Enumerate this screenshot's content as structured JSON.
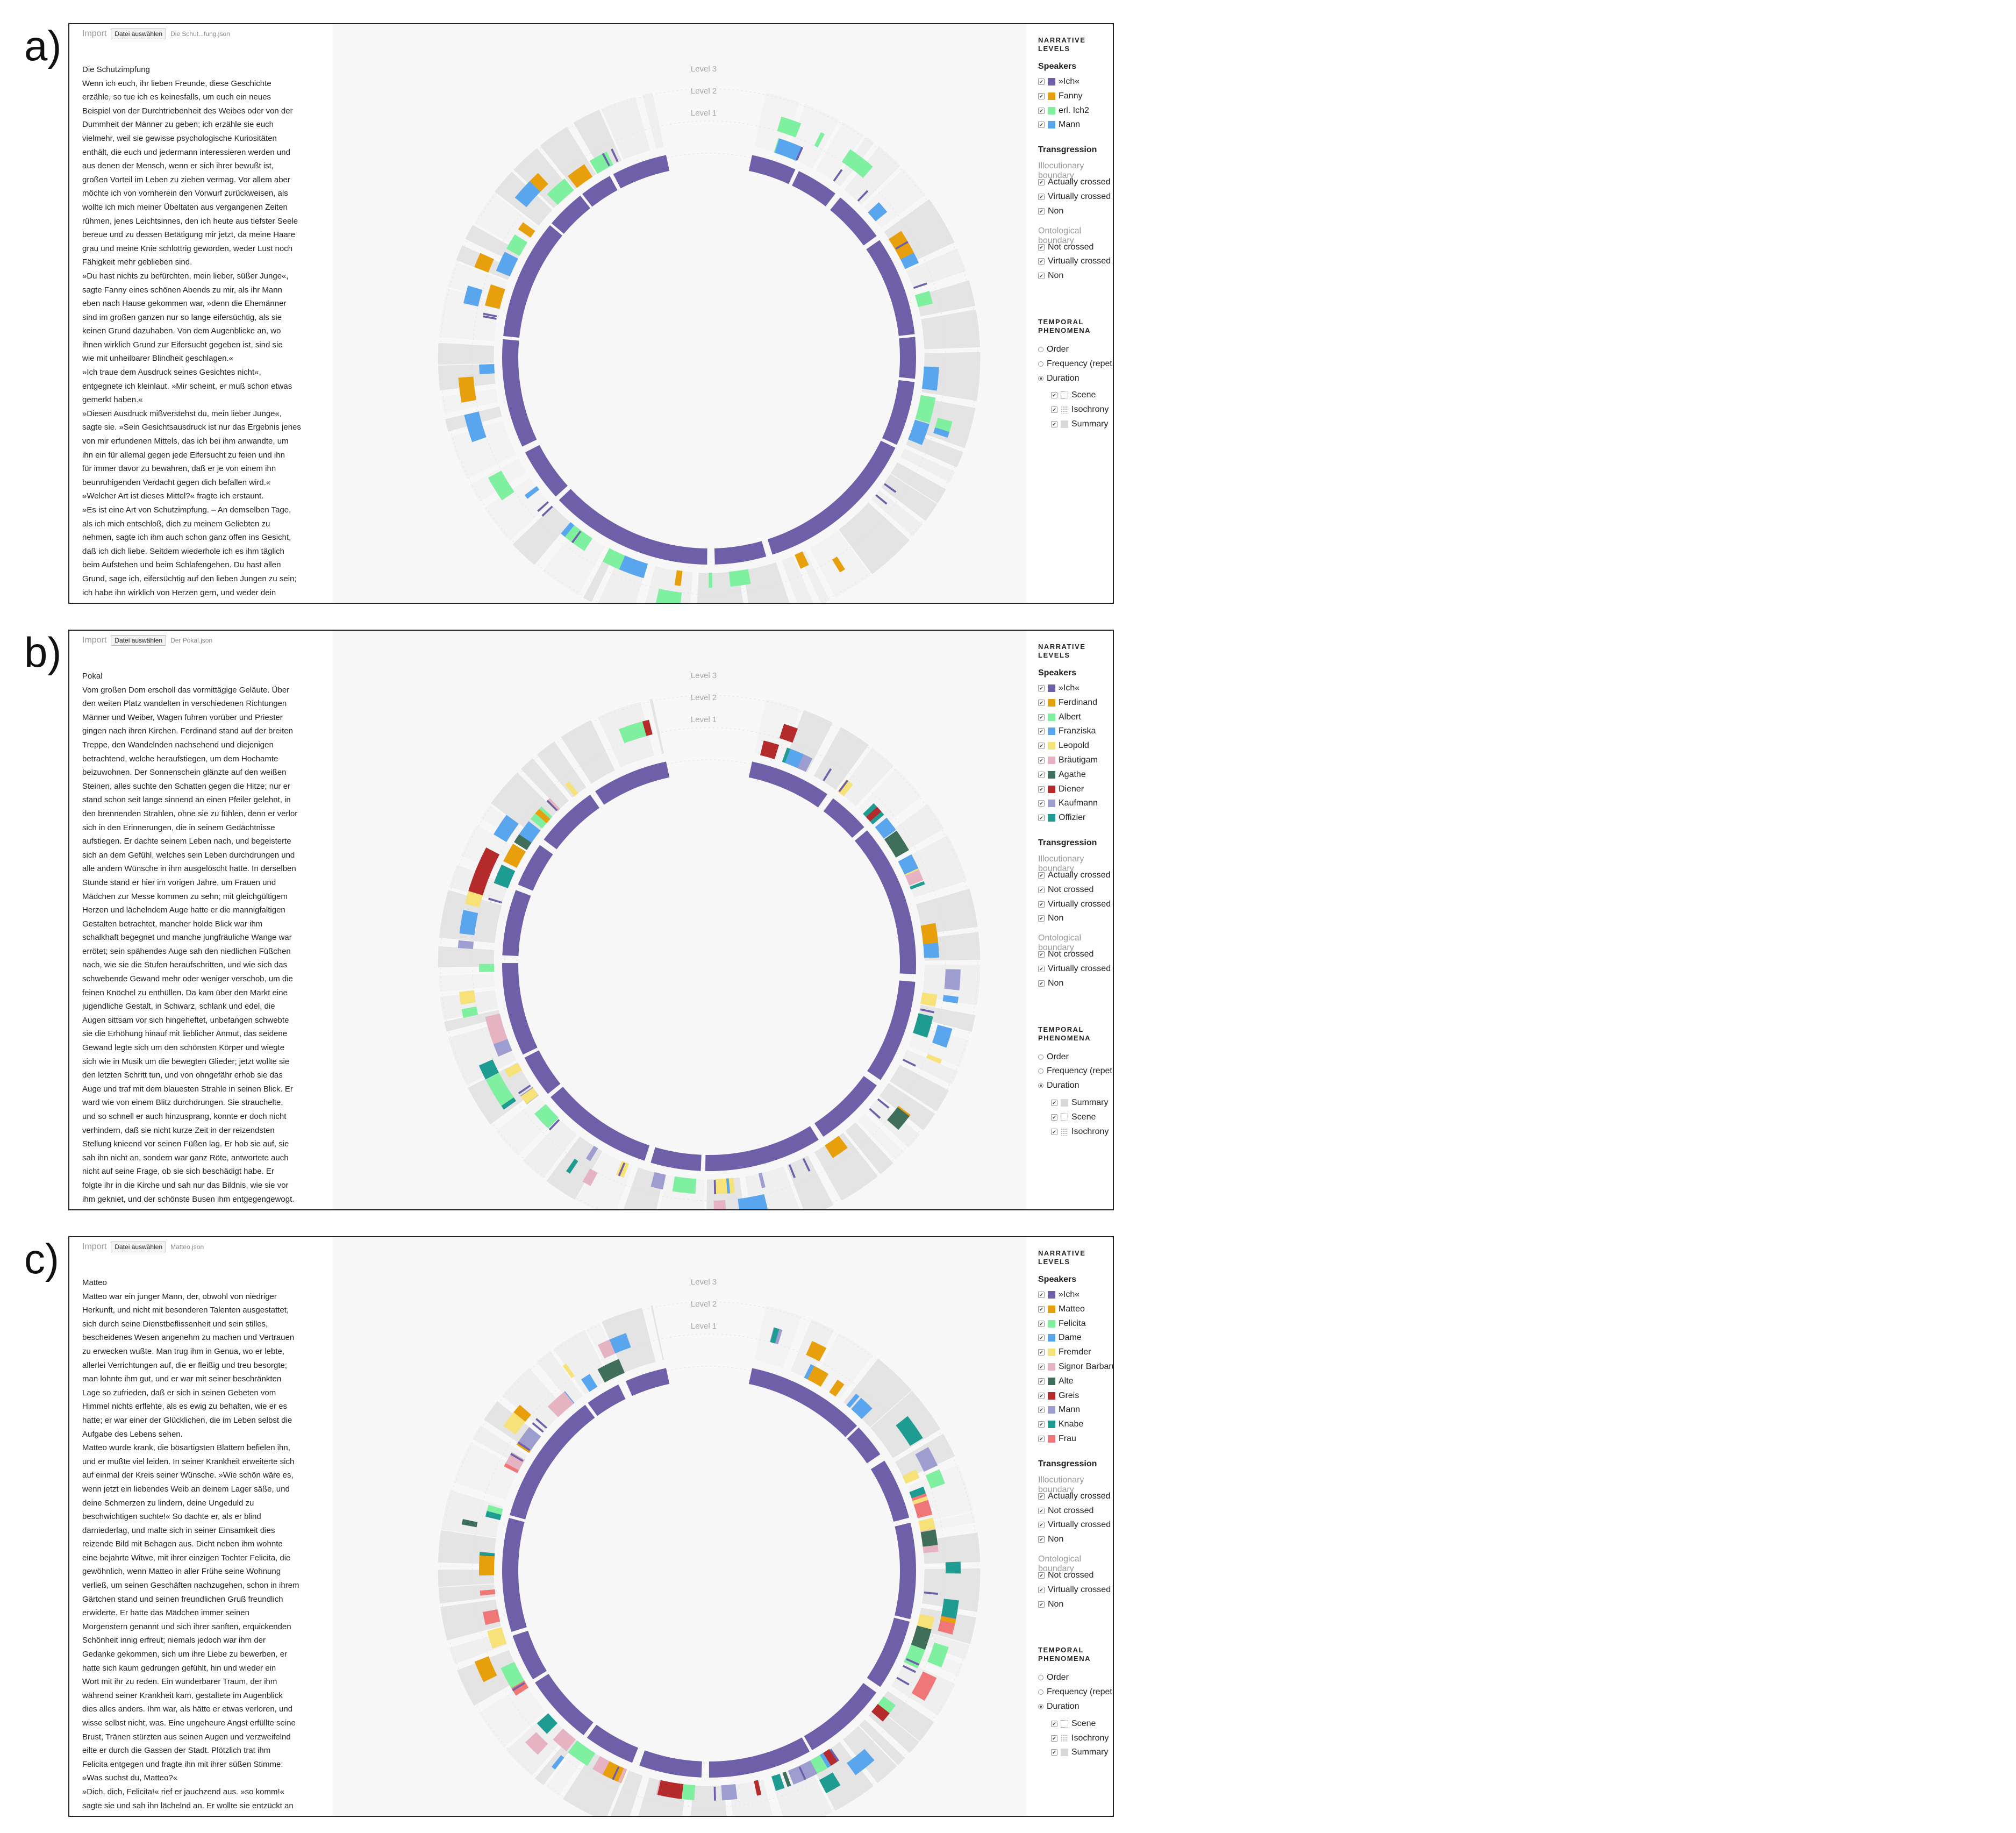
{
  "panels": [
    {
      "letter": "a)",
      "import_label": "Import",
      "file_button": "Datei auswählen",
      "file_name": "Die Schut...fung.json",
      "text_title": "Die Schutzimpfung",
      "text_lines": [
        "Wenn ich euch, ihr lieben Freunde, diese Geschichte",
        "erzähle, so tue ich es keinesfalls, um euch ein neues",
        "Beispiel von der Durchtriebenheit des Weibes oder von der",
        "Dummheit der Männer zu geben; ich erzähle sie euch",
        "vielmehr, weil sie gewisse psychologische Kuriositäten",
        "enthält, die euch und jedermann interessieren werden und",
        "aus denen der Mensch, wenn er sich ihrer bewußt ist,",
        "großen Vorteil im Leben zu ziehen vermag. Vor allem aber",
        "möchte ich von vornherein den Vorwurf zurückweisen, als",
        "wollte ich mich meiner Übeltaten aus vergangenen Zeiten",
        "rühmen, jenes Leichtsinnes, den ich heute aus tiefster Seele",
        "bereue und zu dessen Betätigung mir jetzt, da meine Haare",
        "grau und meine Knie schlottrig geworden, weder Lust noch",
        "Fähigkeit mehr geblieben sind.",
        "»Du hast nichts zu befürchten, mein lieber, süßer Junge«,",
        "sagte Fanny eines schönen Abends zu mir, als ihr Mann",
        "eben nach Hause gekommen war, »denn die Ehemänner",
        "sind im großen ganzen nur so lange eifersüchtig, als sie",
        "keinen Grund dazuhaben. Von dem Augenblicke an, wo",
        "ihnen wirklich Grund zur Eifersucht gegeben ist, sind sie",
        "wie mit unheilbarer Blindheit geschlagen.«",
        "»Ich traue dem Ausdruck seines Gesichtes nicht«,",
        "entgegnete ich kleinlaut. »Mir scheint, er muß schon etwas",
        "gemerkt haben.«",
        "»Diesen Ausdruck mißverstehst du, mein lieber Junge«,",
        "sagte sie. »Sein Gesichtsausdruck ist nur das Ergebnis jenes",
        "von mir erfundenen Mittels, das ich bei ihm anwandte, um",
        "ihn ein für allemal gegen jede Eifersucht zu feien und ihn",
        "für immer davor zu bewahren, daß er je von einem ihn",
        "beunruhigenden Verdacht gegen dich befallen wird.«",
        "»Welcher Art ist dieses Mittel?« fragte ich erstaunt.",
        "»Es ist eine Art von Schutzimpfung. – An demselben Tage,",
        "als ich mich entschloß, dich zu meinem Geliebten zu",
        "nehmen, sagte ich ihm auch schon ganz offen ins Gesicht,",
        "daß ich dich liebe. Seitdem wiederhole ich es ihm täglich",
        "beim Aufstehen und beim Schlafengehen. Du hast allen",
        "Grund, sage ich, eifersüchtig auf den lieben Jungen zu sein;",
        "ich habe ihn wirklich von Herzen gern, und weder dein"
      ],
      "levels": [
        "Level 3",
        "Level 2",
        "Level 1"
      ],
      "narrative_heading": [
        "NARRATIVE",
        "LEVELS"
      ],
      "speakers_heading": "Speakers",
      "speakers": [
        {
          "name": "»Ich«",
          "color": "#6e5fa8"
        },
        {
          "name": "Fanny",
          "color": "#e89f0c"
        },
        {
          "name": "erl. Ich2",
          "color": "#7ef0a0"
        },
        {
          "name": "Mann",
          "color": "#5aa6ee"
        }
      ],
      "transgression_heading": "Transgression",
      "illocutionary_heading": "Illocutionary boundary",
      "illocutionary_items": [
        "Actually crossed",
        "Virtually crossed",
        "Non"
      ],
      "ontological_heading": "Ontological boundary",
      "ontological_items": [
        "Not crossed",
        "Virtually crossed",
        "Non"
      ],
      "temporal_heading": [
        "TEMPORAL",
        "PHENOMENA"
      ],
      "temporal_radios": [
        {
          "label": "Order",
          "selected": false
        },
        {
          "label": "Frequency (repetitive)",
          "selected": false
        },
        {
          "label": "Duration",
          "selected": true
        }
      ],
      "duration_items": [
        {
          "label": "Scene",
          "swatch": "scene"
        },
        {
          "label": "Isochrony",
          "swatch": "isochrony"
        },
        {
          "label": "Summary",
          "swatch": "summary"
        }
      ]
    },
    {
      "letter": "b)",
      "import_label": "Import",
      "file_button": "Datei auswählen",
      "file_name": "Der Pokal.json",
      "text_title": "Pokal",
      "text_lines": [
        "Vom großen Dom erscholl das vormittägige Geläute. Über",
        "den weiten Platz wandelten in verschiedenen Richtungen",
        "Männer und Weiber, Wagen fuhren vorüber und Priester",
        "gingen nach ihren Kirchen. Ferdinand stand auf der breiten",
        "Treppe, den Wandelnden nachsehend und diejenigen",
        "betrachtend, welche heraufstiegen, um dem Hochamte",
        "beizuwohnen. Der Sonnenschein glänzte auf den weißen",
        "Steinen, alles suchte den Schatten gegen die Hitze; nur er",
        "stand schon seit lange sinnend an einen Pfeiler gelehnt, in",
        "den brennenden Strahlen, ohne sie zu fühlen, denn er verlor",
        "sich in den Erinnerungen, die in seinem Gedächtnisse",
        "aufstiegen. Er dachte seinem Leben nach, und begeisterte",
        "sich an dem Gefühl, welches sein Leben durchdrungen und",
        "alle andern Wünsche in ihm ausgelöscht hatte. In derselben",
        "Stunde stand er hier im vorigen Jahre, um Frauen und",
        "Mädchen zur Messe kommen zu sehn; mit gleichgültigem",
        "Herzen und lächelndem Auge hatte er die mannigfaltigen",
        "Gestalten betrachtet, mancher holde Blick war ihm",
        "schalkhaft begegnet und manche jungfräuliche Wange war",
        "errötet; sein spähendes Auge sah den niedlichen Füßchen",
        "nach, wie sie die Stufen heraufschritten, und wie sich das",
        "schwebende Gewand mehr oder weniger verschob, um die",
        "feinen Knöchel zu enthüllen. Da kam über den Markt eine",
        "jugendliche Gestalt, in Schwarz, schlank und edel, die",
        "Augen sittsam vor sich hingeheftet, unbefangen schwebte",
        "sie die Erhöhung hinauf mit lieblicher Anmut, das seidene",
        "Gewand legte sich um den schönsten Körper und wiegte",
        "sich wie in Musik um die bewegten Glieder; jetzt wollte sie",
        "den letzten Schritt tun, und von ohngefähr erhob sie das",
        "Auge und traf mit dem blauesten Strahle in seinen Blick. Er",
        "ward wie von einem Blitz durchdrungen. Sie strauchelte,",
        "und so schnell er auch hinzusprang, konnte er doch nicht",
        "verhindern, daß sie nicht kurze Zeit in der reizendsten",
        "Stellung knieend vor seinen Füßen lag. Er hob sie auf, sie",
        "sah ihn nicht an, sondern war ganz Röte, antwortete auch",
        "nicht auf seine Frage, ob sie sich beschädigt habe. Er",
        "folgte ihr in die Kirche und sah nur das Bildnis, wie sie vor",
        "ihm gekniet, und der schönste Busen ihm entgegengewogt."
      ],
      "levels": [
        "Level 3",
        "Level 2",
        "Level 1"
      ],
      "narrative_heading": [
        "NARRATIVE",
        "LEVELS"
      ],
      "speakers_heading": "Speakers",
      "speakers": [
        {
          "name": "»Ich«",
          "color": "#6e5fa8"
        },
        {
          "name": "Ferdinand",
          "color": "#e89f0c"
        },
        {
          "name": "Albert",
          "color": "#7ef0a0"
        },
        {
          "name": "Franziska",
          "color": "#5aa6ee"
        },
        {
          "name": "Leopold",
          "color": "#f7e27a"
        },
        {
          "name": "Bräutigam",
          "color": "#e5b3c2"
        },
        {
          "name": "Agathe",
          "color": "#3f6e5a"
        },
        {
          "name": "Diener",
          "color": "#b52a2a"
        },
        {
          "name": "Kaufmann",
          "color": "#9d9dd0"
        },
        {
          "name": "Offizier",
          "color": "#1f9c91"
        }
      ],
      "transgression_heading": "Transgression",
      "illocutionary_heading": "Illocutionary boundary",
      "illocutionary_items": [
        "Actually crossed",
        "Not crossed",
        "Virtually crossed",
        "Non"
      ],
      "ontological_heading": "Ontological boundary",
      "ontological_items": [
        "Not crossed",
        "Virtually crossed",
        "Non"
      ],
      "temporal_heading": [
        "TEMPORAL",
        "PHENOMENA"
      ],
      "temporal_radios": [
        {
          "label": "Order",
          "selected": false
        },
        {
          "label": "Frequency (repetitive)",
          "selected": false
        },
        {
          "label": "Duration",
          "selected": true
        }
      ],
      "duration_items": [
        {
          "label": "Summary",
          "swatch": "summary"
        },
        {
          "label": "Scene",
          "swatch": "scene"
        },
        {
          "label": "Isochrony",
          "swatch": "isochrony"
        }
      ]
    },
    {
      "letter": "c)",
      "import_label": "Import",
      "file_button": "Datei auswählen",
      "file_name": "Matteo.json",
      "text_title": "Matteo",
      "text_lines": [
        "Matteo war ein junger Mann, der, obwohl von niedriger",
        "Herkunft, und nicht mit besonderen Talenten ausgestattet,",
        "sich durch seine Dienstbeflissenheit und sein stilles,",
        "bescheidenes Wesen angenehm zu machen und Vertrauen",
        "zu erwecken wußte. Man trug ihm in Genua, wo er lebte,",
        "allerlei Verrichtungen auf, die er fleißig und treu besorgte;",
        "man lohnte ihm gut, und er war mit seiner beschränkten",
        "Lage so zufrieden, daß er sich in seinen Gebeten vom",
        "Himmel nichts erflehte, als es ewig zu behalten, wie er es",
        "hatte; er war einer der Glücklichen, die im Leben selbst die",
        "Aufgabe des Lebens sehen.",
        "Matteo wurde krank, die bösartigsten Blattern befielen ihn,",
        "und er mußte viel leiden. In seiner Krankheit erweiterte sich",
        "auf einmal der Kreis seiner Wünsche. »Wie schön wäre es,",
        "wenn jetzt ein liebendes Weib an deinem Lager säße, und",
        "deine Schmerzen zu lindern, deine Ungeduld zu",
        "beschwichtigen suchte!« So dachte er, als er blind",
        "darniederlag, und malte sich in seiner Einsamkeit dies",
        "reizende Bild mit Behagen aus. Dicht neben ihm wohnte",
        "eine bejahrte Witwe, mit ihrer einzigen Tochter Felicita, die",
        "gewöhnlich, wenn Matteo in aller Frühe seine Wohnung",
        "verließ, um seinen Geschäften nachzugehen, schon in ihrem",
        "Gärtchen stand und seinen freundlichen Gruß freundlich",
        "erwiderte. Er hatte das Mädchen immer seinen",
        "Morgenstern genannt und sich ihrer sanften, erquickenden",
        "Schönheit innig erfreut; niemals jedoch war ihm der",
        "Gedanke gekommen, sich um ihre Liebe zu bewerben, er",
        "hatte sich kaum gedrungen gefühlt, hin und wieder ein",
        "Wort mit ihr zu reden. Ein wunderbarer Traum, der ihm",
        "während seiner Krankheit kam, gestaltete im Augenblick",
        "dies alles anders. Ihm war, als hätte er etwas verloren, und",
        "wisse selbst nicht, was. Eine ungeheure Angst erfüllte seine",
        "Brust, Tränen stürzten aus seinen Augen und verzweifelnd",
        "eilte er durch die Gassen der Stadt. Plötzlich trat ihm",
        "Felicita entgegen und fragte ihn mit ihrer süßen Stimme:",
        "»Was suchst du, Matteo?«",
        "»Dich, dich, Felicita!« rief er jauchzend aus. »so komm!«",
        "sagte sie und sah ihn lächelnd an. Er wollte sie entzückt an"
      ],
      "levels": [
        "Level 3",
        "Level 2",
        "Level 1"
      ],
      "narrative_heading": [
        "NARRATIVE",
        "LEVELS"
      ],
      "speakers_heading": "Speakers",
      "speakers": [
        {
          "name": "»Ich«",
          "color": "#6e5fa8"
        },
        {
          "name": "Matteo",
          "color": "#e89f0c"
        },
        {
          "name": "Felicita",
          "color": "#7ef0a0"
        },
        {
          "name": "Dame",
          "color": "#5aa6ee"
        },
        {
          "name": "Fremder",
          "color": "#f7e27a"
        },
        {
          "name": "Signor Barbarucci",
          "color": "#e5b3c2"
        },
        {
          "name": "Alte",
          "color": "#3f6e5a"
        },
        {
          "name": "Greis",
          "color": "#b52a2a"
        },
        {
          "name": "Mann",
          "color": "#9d9dd0"
        },
        {
          "name": "Knabe",
          "color": "#1f9c91"
        },
        {
          "name": "Frau",
          "color": "#ef7777"
        }
      ],
      "transgression_heading": "Transgression",
      "illocutionary_heading": "Illocutionary boundary",
      "illocutionary_items": [
        "Actually crossed",
        "Not crossed",
        "Virtually crossed",
        "Non"
      ],
      "ontological_heading": "Ontological boundary",
      "ontological_items": [
        "Not crossed",
        "Virtually crossed",
        "Non"
      ],
      "temporal_heading": [
        "TEMPORAL",
        "PHENOMENA"
      ],
      "temporal_radios": [
        {
          "label": "Order",
          "selected": false
        },
        {
          "label": "Frequency (repetitive)",
          "selected": false
        },
        {
          "label": "Duration",
          "selected": true
        }
      ],
      "duration_items": [
        {
          "label": "Scene",
          "swatch": "scene"
        },
        {
          "label": "Isochrony",
          "swatch": "isochrony"
        },
        {
          "label": "Summary",
          "swatch": "summary"
        }
      ]
    }
  ]
}
